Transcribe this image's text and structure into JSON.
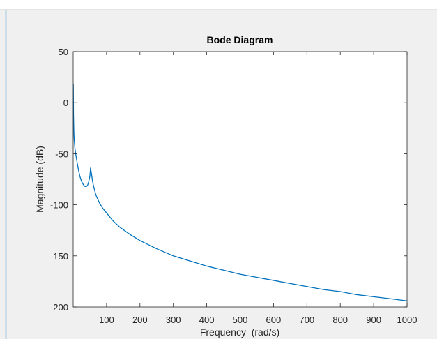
{
  "window": {
    "background_color": "#f0f0f0",
    "border_color": "#62a8d6"
  },
  "chart_data": {
    "type": "line",
    "title": "Bode Diagram",
    "xlabel": "Frequency  (rad/s)",
    "ylabel": "Magnitude (dB)",
    "xlim": [
      0,
      1000
    ],
    "ylim": [
      -200,
      50
    ],
    "x_scale": "linear",
    "grid": false,
    "x_ticks": [
      100,
      200,
      300,
      400,
      500,
      600,
      700,
      800,
      900,
      1000
    ],
    "y_ticks": [
      50,
      0,
      -50,
      -100,
      -150,
      -200
    ],
    "x_tick_labels": [
      "100",
      "200",
      "300",
      "400",
      "500",
      "600",
      "700",
      "800",
      "900",
      "1000"
    ],
    "y_tick_labels": [
      "50",
      "0",
      "-50",
      "-100",
      "-150",
      "-200"
    ],
    "line_color": "#0072bd",
    "axis_color": "#262626",
    "series": [
      {
        "x": [
          0.3,
          0.6,
          1,
          2,
          3,
          5,
          8,
          12,
          16,
          20,
          25,
          30,
          35,
          40,
          43,
          46,
          48,
          50,
          52,
          55,
          58,
          62,
          66,
          70,
          80,
          90,
          100,
          120,
          140,
          170,
          200,
          250,
          300,
          350,
          400,
          450,
          500,
          550,
          600,
          650,
          700,
          750,
          800,
          850,
          900,
          950,
          1000
        ],
        "y": [
          18,
          5,
          -12,
          -28,
          -36,
          -44,
          -51,
          -59,
          -66,
          -72,
          -77,
          -80,
          -82,
          -82,
          -81,
          -78,
          -75,
          -72,
          -64,
          -70,
          -77,
          -83,
          -88,
          -92,
          -99,
          -104,
          -108,
          -116,
          -122,
          -129,
          -135,
          -143,
          -150,
          -155,
          -160,
          -164,
          -168,
          -171,
          -174,
          -177,
          -180,
          -183,
          -185,
          -188,
          -190,
          -192,
          -194
        ]
      }
    ]
  }
}
